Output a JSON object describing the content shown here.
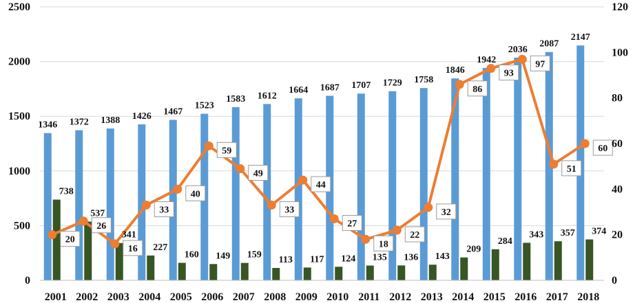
{
  "chart_data": {
    "type": "bar",
    "categories": [
      "2001",
      "2002",
      "2003",
      "2004",
      "2005",
      "2006",
      "2007",
      "2008",
      "2009",
      "2010",
      "2011",
      "2012",
      "2013",
      "2014",
      "2015",
      "2016",
      "2017",
      "2018"
    ],
    "series": [
      {
        "type": "bar",
        "axis": "left",
        "color": "#5b9bd5",
        "values": [
          1346,
          1372,
          1388,
          1426,
          1467,
          1523,
          1583,
          1612,
          1664,
          1687,
          1707,
          1729,
          1758,
          1846,
          1942,
          2036,
          2087,
          2147
        ]
      },
      {
        "type": "bar",
        "axis": "left",
        "color": "#375623",
        "values": [
          738,
          537,
          341,
          227,
          160,
          149,
          159,
          113,
          117,
          124,
          135,
          136,
          143,
          209,
          284,
          343,
          357,
          374
        ]
      },
      {
        "type": "line",
        "axis": "right",
        "color": "#ed7d31",
        "values": [
          20,
          26,
          16,
          33,
          40,
          59,
          49,
          33,
          44,
          27,
          18,
          22,
          32,
          86,
          93,
          97,
          51,
          60
        ]
      }
    ],
    "left_axis": {
      "ylim": [
        0,
        2500
      ],
      "ticks": [
        "0",
        "500",
        "1000",
        "1500",
        "2000",
        "2500"
      ]
    },
    "right_axis": {
      "ylim": [
        0,
        120
      ],
      "ticks": [
        "0",
        "20",
        "40",
        "60",
        "80",
        "100",
        "120"
      ]
    },
    "grid": true,
    "legend": "none"
  }
}
